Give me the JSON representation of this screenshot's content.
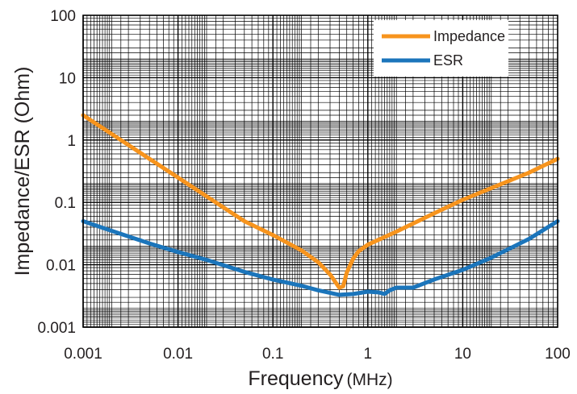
{
  "chart_data": {
    "type": "line",
    "title": "",
    "xlabel": "Frequency",
    "xlabel_unit": "(MHz)",
    "ylabel": "Impedance/ESR (Ohm)",
    "x_scale": "log",
    "y_scale": "log",
    "xlim": [
      0.001,
      100
    ],
    "ylim": [
      0.001,
      100
    ],
    "x_ticks": [
      "0.001",
      "0.01",
      "0.1",
      "1",
      "10",
      "100"
    ],
    "y_ticks": [
      "0.001",
      "0.01",
      "0.1",
      "1",
      "10",
      "100"
    ],
    "grid": true,
    "legend": "top-right",
    "series": [
      {
        "name": "Impedance",
        "color": "#f7941d",
        "points": [
          [
            0.001,
            2.5
          ],
          [
            0.002,
            1.25
          ],
          [
            0.005,
            0.5
          ],
          [
            0.01,
            0.25
          ],
          [
            0.02,
            0.125
          ],
          [
            0.05,
            0.05
          ],
          [
            0.1,
            0.03
          ],
          [
            0.2,
            0.017
          ],
          [
            0.3,
            0.011
          ],
          [
            0.4,
            0.007
          ],
          [
            0.5,
            0.0043
          ],
          [
            0.55,
            0.0045
          ],
          [
            0.6,
            0.0075
          ],
          [
            0.7,
            0.0125
          ],
          [
            0.8,
            0.0165
          ],
          [
            1.0,
            0.021
          ],
          [
            2.0,
            0.034
          ],
          [
            5.0,
            0.067
          ],
          [
            10,
            0.11
          ],
          [
            20,
            0.17
          ],
          [
            50,
            0.3
          ],
          [
            100,
            0.5
          ]
        ]
      },
      {
        "name": "ESR",
        "color": "#1b75bb",
        "points": [
          [
            0.001,
            0.05
          ],
          [
            0.002,
            0.035
          ],
          [
            0.005,
            0.022
          ],
          [
            0.01,
            0.016
          ],
          [
            0.02,
            0.012
          ],
          [
            0.05,
            0.0077
          ],
          [
            0.1,
            0.0058
          ],
          [
            0.2,
            0.0046
          ],
          [
            0.3,
            0.0039
          ],
          [
            0.5,
            0.0033
          ],
          [
            0.7,
            0.0034
          ],
          [
            1.0,
            0.0037
          ],
          [
            1.3,
            0.0036
          ],
          [
            1.5,
            0.0034
          ],
          [
            1.7,
            0.0039
          ],
          [
            2.0,
            0.0043
          ],
          [
            3.0,
            0.0043
          ],
          [
            5.0,
            0.0058
          ],
          [
            10,
            0.0083
          ],
          [
            20,
            0.013
          ],
          [
            50,
            0.026
          ],
          [
            100,
            0.05
          ]
        ]
      }
    ]
  }
}
